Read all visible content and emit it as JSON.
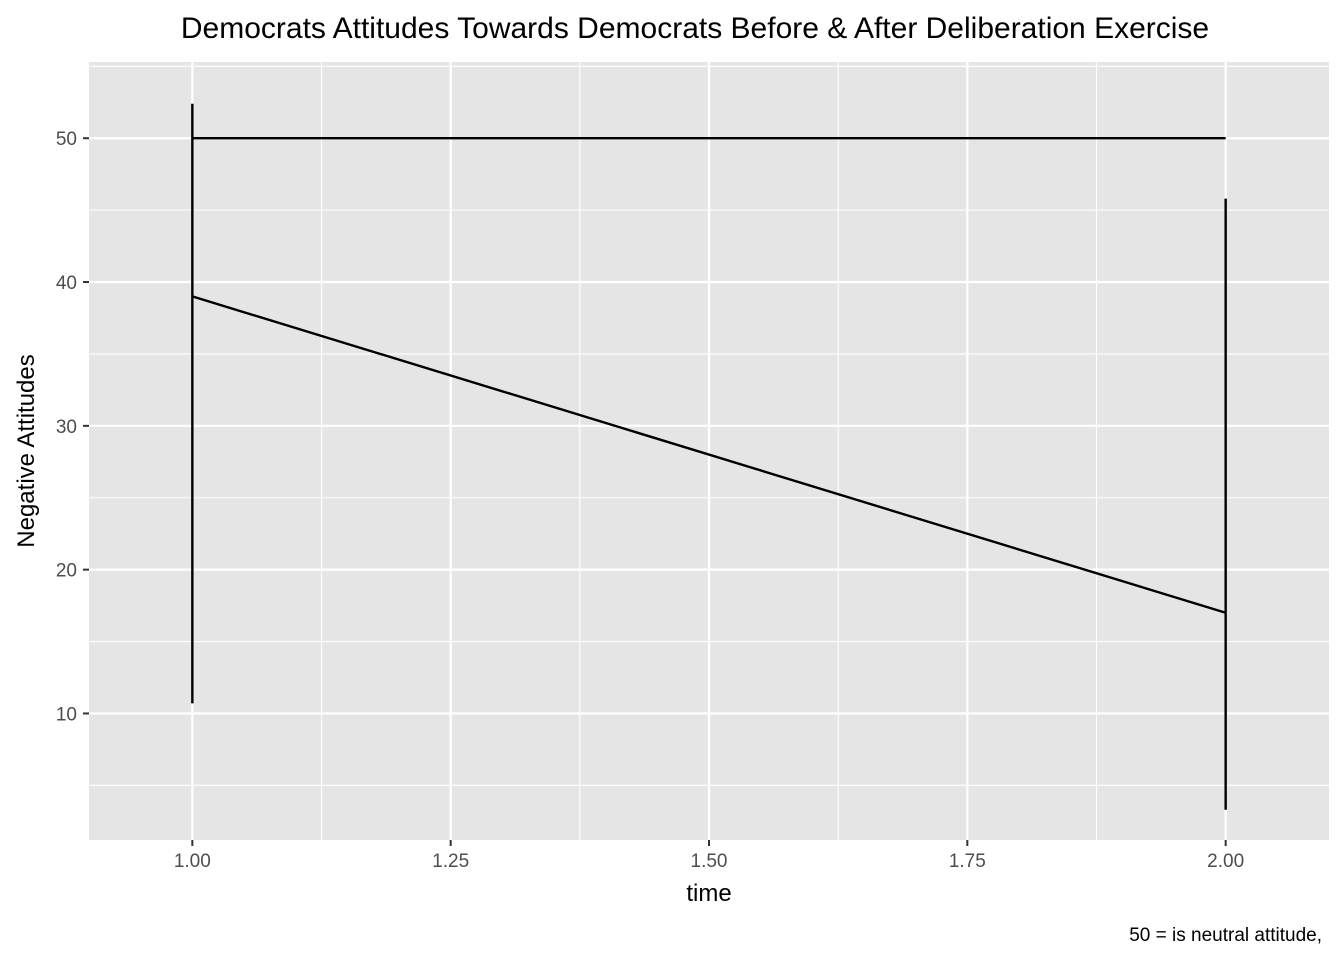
{
  "chart_data": {
    "type": "line",
    "title": "Democrats Attitudes Towards Democrats Before & After Deliberation Exercise",
    "xlabel": "time",
    "ylabel": "Negative Attitudes",
    "caption": "50 = is neutral attitude,",
    "xlim": [
      0.9,
      2.1
    ],
    "ylim": [
      1.2,
      55.3
    ],
    "xticks": [
      1.0,
      1.25,
      1.5,
      1.75,
      2.0
    ],
    "xtick_labels": [
      "1.00",
      "1.25",
      "1.50",
      "1.75",
      "2.00"
    ],
    "yticks": [
      10,
      20,
      30,
      40,
      50
    ],
    "ytick_labels": [
      "10",
      "20",
      "30",
      "40",
      "50"
    ],
    "grid": true,
    "legend": "none",
    "series": [
      {
        "x": [
          1,
          2
        ],
        "y": [
          39,
          17
        ]
      },
      {
        "x": [
          1,
          2
        ],
        "y": [
          50,
          50
        ]
      }
    ],
    "error_bars": [
      {
        "x": 1,
        "low": 10.7,
        "high": 52.4
      },
      {
        "x": 2,
        "low": 3.3,
        "high": 45.8
      }
    ],
    "colors": {
      "panel": "#e5e5e5",
      "grid": "#ffffff",
      "line": "#000000",
      "tick_text": "#4d4d4d",
      "tick_mark": "#333333"
    }
  }
}
